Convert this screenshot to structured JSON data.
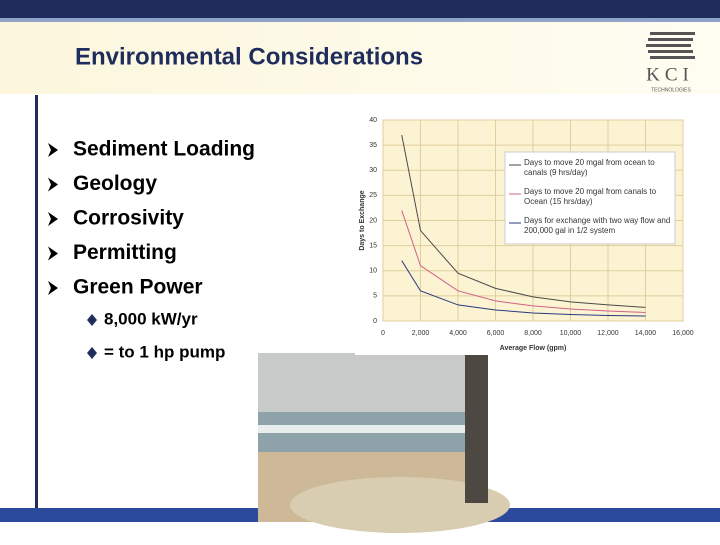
{
  "header": {
    "title": "Environmental Considerations",
    "logo": "KCI",
    "logo_sub": "TECHNOLOGIES"
  },
  "bullets": [
    "Sediment Loading",
    "Geology",
    "Corrosivity",
    "Permitting",
    "Green Power"
  ],
  "sub_bullets": [
    "8,000 kW/yr",
    "= to 1 hp pump"
  ],
  "chart_data": {
    "type": "line",
    "x_label": "Average Flow (gpm)",
    "y_label": "Days to Exchange",
    "x": [
      1000,
      2000,
      4000,
      6000,
      8000,
      10000,
      12000,
      14000
    ],
    "series": [
      {
        "name": "Days to move 20 mgal from ocean to canals (9 hrs/day)",
        "color": "#4a4a4a",
        "values": [
          37,
          18,
          9.5,
          6.5,
          4.8,
          3.8,
          3.2,
          2.7
        ]
      },
      {
        "name": "Days to move 20 mgal from canals to Ocean (15 hrs/day)",
        "color": "#d0608a",
        "values": [
          22,
          11,
          6,
          4,
          3,
          2.4,
          2,
          1.7
        ]
      },
      {
        "name": "Days for exchange with two way flow and 200,000 gal in 1/2 system",
        "color": "#2a3a80",
        "values": [
          12,
          6,
          3.2,
          2.2,
          1.6,
          1.3,
          1.1,
          1
        ]
      }
    ],
    "xlim": [
      0,
      16000
    ],
    "xticks": [
      0,
      {
        "value": 2000,
        "label": "2,000"
      },
      {
        "value": 4000,
        "label": "4,000"
      },
      {
        "value": 6000,
        "label": "6,000"
      },
      {
        "value": 8000,
        "label": "8,000"
      },
      {
        "value": 10000,
        "label": "10,000"
      },
      {
        "value": 12000,
        "label": "12,000"
      },
      {
        "value": 14000,
        "label": "14,000"
      },
      {
        "value": 16000,
        "label": "16,000"
      }
    ],
    "ylim": [
      0,
      40
    ],
    "yticks": [
      0,
      5,
      10,
      15,
      20,
      25,
      30,
      35,
      40
    ],
    "grid": true
  }
}
